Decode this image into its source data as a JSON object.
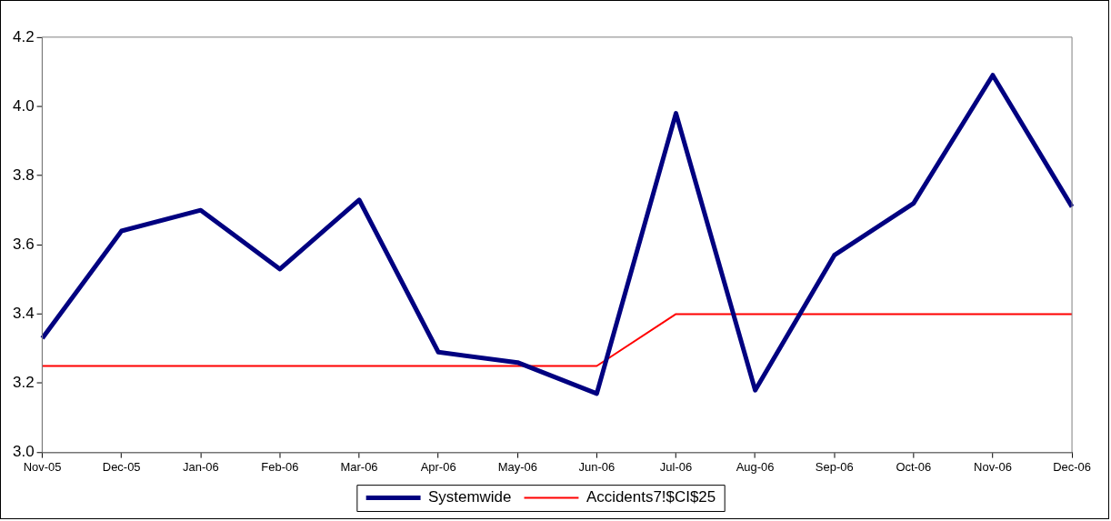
{
  "chart_data": {
    "type": "line",
    "categories": [
      "Nov-05",
      "Dec-05",
      "Jan-06",
      "Feb-06",
      "Mar-06",
      "Apr-06",
      "May-06",
      "Jun-06",
      "Jul-06",
      "Aug-06",
      "Sep-06",
      "Oct-06",
      "Nov-06",
      "Dec-06"
    ],
    "series": [
      {
        "name": "Systemwide",
        "color": "#000080",
        "values": [
          3.33,
          3.64,
          3.7,
          3.53,
          3.73,
          3.29,
          3.26,
          3.17,
          3.98,
          3.18,
          3.57,
          3.72,
          4.09,
          3.71
        ]
      },
      {
        "name": "Accidents7!$CI$25",
        "color": "#ff0000",
        "values": [
          3.25,
          3.25,
          3.25,
          3.25,
          3.25,
          3.25,
          3.25,
          3.25,
          3.4,
          3.4,
          3.4,
          3.4,
          3.4,
          3.4
        ]
      }
    ],
    "ylim": [
      3.0,
      4.2
    ],
    "yticks": [
      {
        "value": 3.0,
        "label": "3.0"
      },
      {
        "value": 3.2,
        "label": "3.2"
      },
      {
        "value": 3.4,
        "label": "3.4"
      },
      {
        "value": 3.6,
        "label": "3.6"
      },
      {
        "value": 3.8,
        "label": "3.8"
      },
      {
        "value": 4.0,
        "label": "4.0"
      },
      {
        "value": 4.2,
        "label": "4.2"
      }
    ],
    "grid": false,
    "legend": "bottom",
    "marker": "none",
    "line_style": "solid"
  }
}
